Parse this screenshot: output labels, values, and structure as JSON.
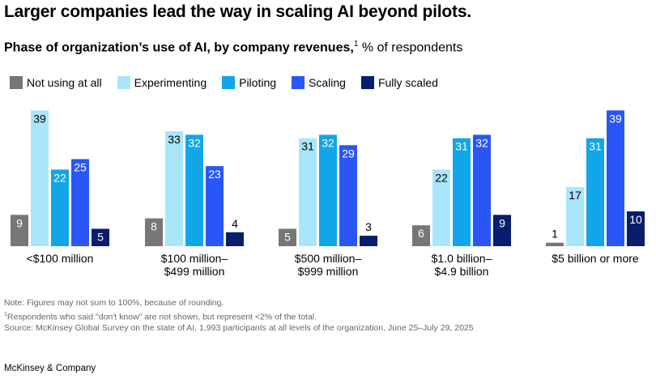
{
  "title": "Larger companies lead the way in scaling AI beyond pilots.",
  "subtitle": {
    "bold": "Phase of organization’s use of AI, by company revenues,",
    "footnote_mark": "1",
    "rest": " % of respondents"
  },
  "notes": {
    "line1": "Note: Figures may not sum to 100%, because of rounding.",
    "line2_mark": "1",
    "line2": "Respondents who said \"don't know\" are not shown, but represent <2% of the total.",
    "line3": " Source: McKinsey Global Survey on the state of AI, 1,993 participants at all levels of the organization, June 25–July 29, 2025"
  },
  "brand": "McKinsey & Company",
  "chart_data": {
    "type": "bar",
    "categories": [
      [
        "<$100 million"
      ],
      [
        "$100 million–",
        "$499 million"
      ],
      [
        "$500 million–",
        "$999 million"
      ],
      [
        "$1.0 billion–",
        "$4.9 billion"
      ],
      [
        "$5 billion or more"
      ]
    ],
    "series": [
      {
        "name": "Not using at all",
        "color": "#767676",
        "values": [
          9,
          8,
          5,
          6,
          1
        ]
      },
      {
        "name": "Experimenting",
        "color": "#a8e6fb",
        "values": [
          39,
          33,
          31,
          22,
          17
        ]
      },
      {
        "name": "Piloting",
        "color": "#11a6e8",
        "values": [
          22,
          32,
          32,
          31,
          31
        ]
      },
      {
        "name": "Scaling",
        "color": "#2a56f5",
        "values": [
          25,
          23,
          29,
          32,
          39
        ]
      },
      {
        "name": "Fully scaled",
        "color": "#081d6b",
        "values": [
          5,
          4,
          3,
          9,
          10
        ]
      }
    ],
    "ylim": [
      0,
      40
    ],
    "grid": false,
    "legend_position": "top-left",
    "label_colors": {
      "inside": "#ffffff",
      "inside_light": "#000000",
      "outside": "#000000"
    }
  }
}
